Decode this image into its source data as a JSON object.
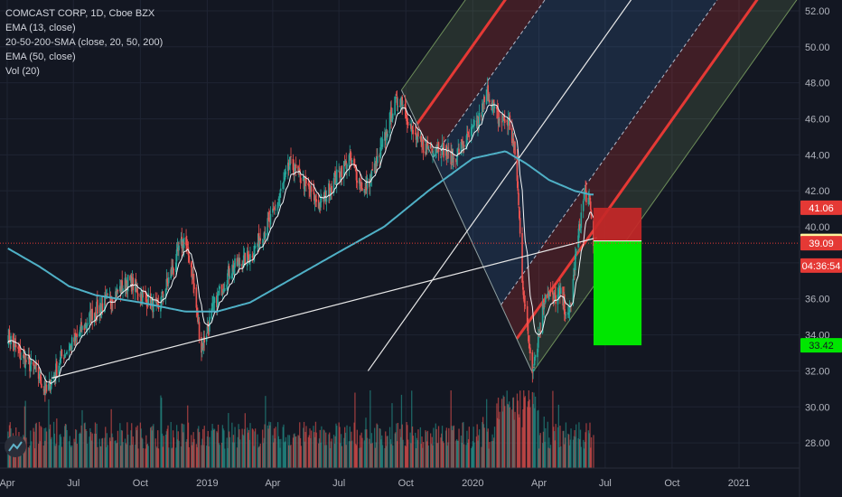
{
  "legend": {
    "title": "COMCAST CORP, 1D, Cboe BZX",
    "indicators": [
      "EMA (13, close)",
      "20-50-200-SMA (close, 20, 50, 200)",
      "EMA (50, close)",
      "Vol (20)"
    ]
  },
  "colors": {
    "background": "#131722",
    "grid": "#1f2433",
    "candle_up": "#26a69a",
    "candle_down": "#ef5350",
    "ema13": "#f0f3f5",
    "sma200": "#4fb0c6",
    "pitchfork_median": "#e8e8e8",
    "pitchfork_red": "#e53935",
    "pitchfork_green_outer": "#6e8f5a",
    "stop_zone": "#c62828",
    "target_zone": "#00e600",
    "current_price_line": "#e53935"
  },
  "chart_data": {
    "type": "candlestick",
    "title": "COMCAST CORP, 1D, Cboe BZX",
    "x_ticks": [
      "Apr",
      "Jul",
      "Oct",
      "2019",
      "Apr",
      "Jul",
      "Oct",
      "2020",
      "Apr",
      "Jul",
      "Oct",
      "2021"
    ],
    "y_ticks": [
      "52.00",
      "50.00",
      "48.00",
      "46.00",
      "44.00",
      "42.00",
      "40.00",
      "38.00",
      "36.00",
      "34.00",
      "32.00",
      "30.00",
      "28.00"
    ],
    "ylim": [
      26.6,
      52.6
    ],
    "price_anchors": [
      [
        "2018-04-02",
        34.0
      ],
      [
        "2018-04-20",
        32.8
      ],
      [
        "2018-05-10",
        32.0
      ],
      [
        "2018-05-25",
        30.8
      ],
      [
        "2018-06-15",
        32.8
      ],
      [
        "2018-07-05",
        33.8
      ],
      [
        "2018-07-27",
        35.2
      ],
      [
        "2018-08-20",
        36.0
      ],
      [
        "2018-09-15",
        37.0
      ],
      [
        "2018-10-05",
        36.2
      ],
      [
        "2018-10-25",
        35.4
      ],
      [
        "2018-11-10",
        37.2
      ],
      [
        "2018-11-30",
        39.4
      ],
      [
        "2018-12-10",
        37.8
      ],
      [
        "2018-12-24",
        33.2
      ],
      [
        "2019-01-10",
        35.6
      ],
      [
        "2019-02-01",
        37.6
      ],
      [
        "2019-03-01",
        38.4
      ],
      [
        "2019-04-01",
        40.6
      ],
      [
        "2019-04-25",
        43.5
      ],
      [
        "2019-05-15",
        42.4
      ],
      [
        "2019-06-05",
        41.2
      ],
      [
        "2019-06-25",
        42.6
      ],
      [
        "2019-07-15",
        43.8
      ],
      [
        "2019-08-05",
        42.0
      ],
      [
        "2019-08-25",
        43.8
      ],
      [
        "2019-09-15",
        46.8
      ],
      [
        "2019-09-25",
        47.2
      ],
      [
        "2019-10-10",
        45.2
      ],
      [
        "2019-10-25",
        44.4
      ],
      [
        "2019-11-15",
        44.5
      ],
      [
        "2019-12-05",
        43.8
      ],
      [
        "2019-12-27",
        45.0
      ],
      [
        "2020-01-10",
        46.0
      ],
      [
        "2020-01-21",
        47.5
      ],
      [
        "2020-02-05",
        46.0
      ],
      [
        "2020-02-20",
        45.8
      ],
      [
        "2020-03-01",
        43.5
      ],
      [
        "2020-03-09",
        37.2
      ],
      [
        "2020-03-16",
        34.2
      ],
      [
        "2020-03-23",
        32.2
      ],
      [
        "2020-04-01",
        34.0
      ],
      [
        "2020-04-10",
        36.5
      ],
      [
        "2020-04-20",
        36.0
      ],
      [
        "2020-05-01",
        36.2
      ],
      [
        "2020-05-12",
        34.8
      ],
      [
        "2020-05-22",
        38.6
      ],
      [
        "2020-06-03",
        42.0
      ],
      [
        "2020-06-10",
        41.2
      ],
      [
        "2020-06-15",
        39.2
      ]
    ],
    "sma200_anchors": [
      [
        "2018-04-02",
        38.8
      ],
      [
        "2018-05-15",
        37.8
      ],
      [
        "2018-06-25",
        36.7
      ],
      [
        "2018-08-01",
        36.2
      ],
      [
        "2018-10-01",
        35.8
      ],
      [
        "2018-12-01",
        35.3
      ],
      [
        "2019-01-15",
        35.3
      ],
      [
        "2019-03-01",
        35.8
      ],
      [
        "2019-05-01",
        37.2
      ],
      [
        "2019-07-01",
        38.6
      ],
      [
        "2019-09-01",
        40.0
      ],
      [
        "2019-11-01",
        42.0
      ],
      [
        "2020-01-01",
        43.8
      ],
      [
        "2020-02-15",
        44.2
      ],
      [
        "2020-03-15",
        43.5
      ],
      [
        "2020-04-15",
        42.6
      ],
      [
        "2020-05-20",
        42.0
      ],
      [
        "2020-06-10",
        41.8
      ]
    ],
    "volume_ylim": [
      0,
      2.5
    ],
    "volume_note": "daily volume bars at bottom, red/green",
    "pitchfork": {
      "pivot": [
        "2019-08-10",
        32.0
      ],
      "a": [
        "2019-09-25",
        47.6
      ],
      "b": [
        "2020-03-23",
        31.9
      ],
      "median_end": [
        "2021-01-15",
        46.4
      ]
    },
    "position": {
      "type": "short",
      "entry": 39.22,
      "stop": 41.06,
      "target": 33.42,
      "start": "2020-06-15",
      "end": "2020-08-20"
    },
    "price_labels": [
      {
        "value": "41.06",
        "price": 41.06,
        "style": "stop"
      },
      {
        "value": "39.22",
        "price": 39.22,
        "style": "entry"
      },
      {
        "value": "39.09",
        "price": 39.09,
        "style": "last"
      },
      {
        "value": "04:36:54",
        "price": 37.85,
        "style": "timer"
      },
      {
        "value": "33.42",
        "price": 33.42,
        "style": "target"
      }
    ]
  }
}
